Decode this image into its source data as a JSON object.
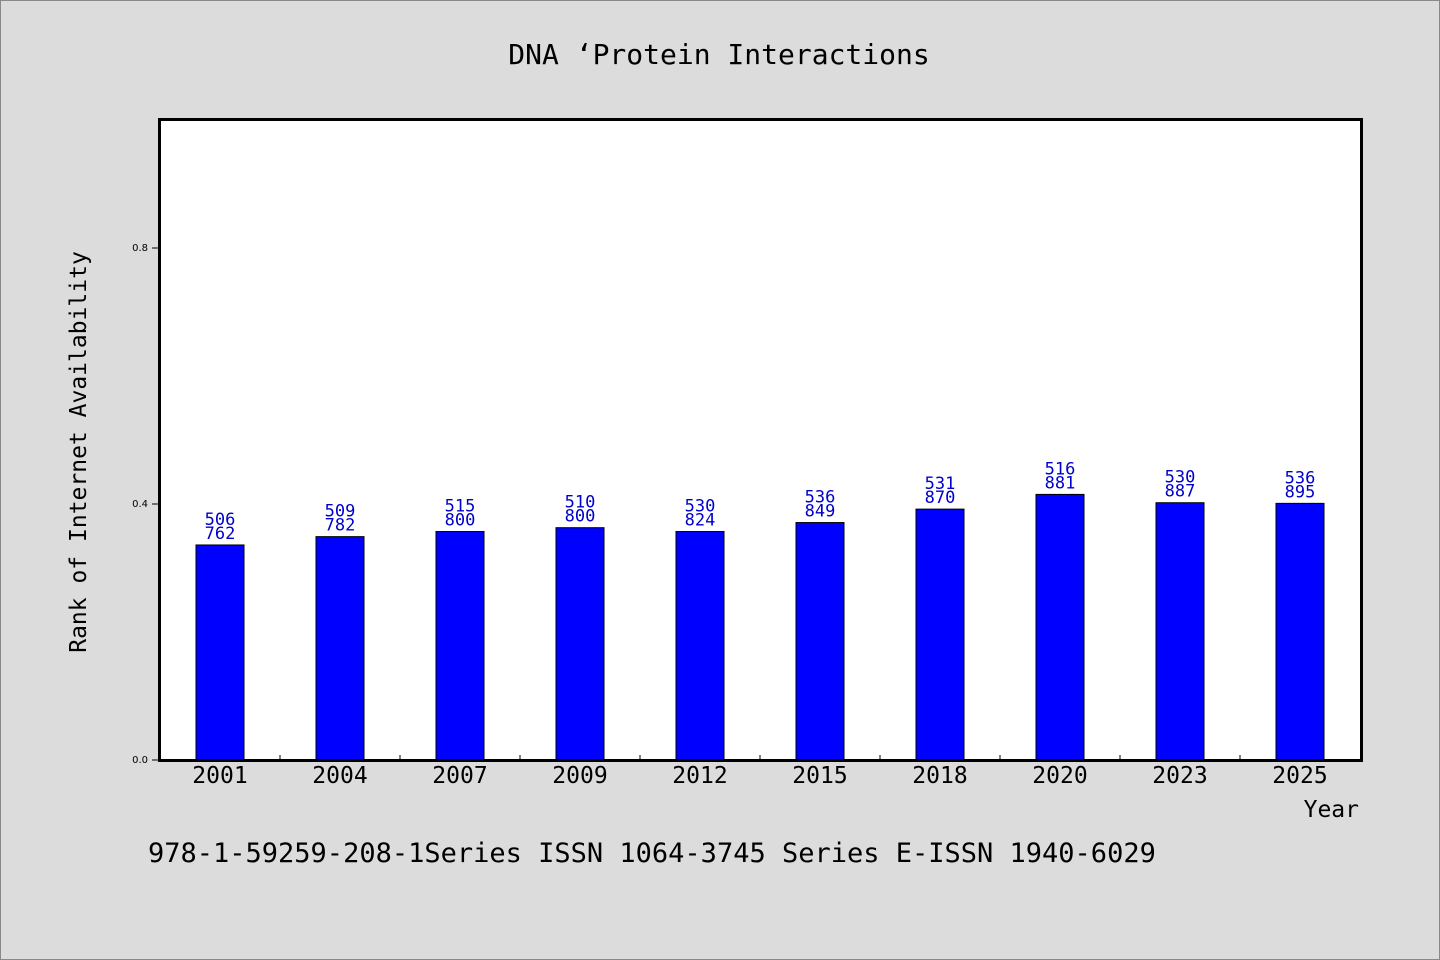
{
  "chart_data": {
    "type": "bar",
    "title": "DNA ‘Protein Interactions",
    "xlabel": "Year",
    "ylabel": "Rank of Internet Availability",
    "categories": [
      "2001",
      "2004",
      "2007",
      "2009",
      "2012",
      "2015",
      "2018",
      "2020",
      "2023",
      "2025"
    ],
    "values": [
      0.336,
      0.349,
      0.357,
      0.363,
      0.357,
      0.371,
      0.392,
      0.415,
      0.402,
      0.401
    ],
    "data_labels": [
      [
        "506",
        "762"
      ],
      [
        "509",
        "782"
      ],
      [
        "515",
        "800"
      ],
      [
        "510",
        "800"
      ],
      [
        "530",
        "824"
      ],
      [
        "536",
        "849"
      ],
      [
        "531",
        "870"
      ],
      [
        "516",
        "881"
      ],
      [
        "530",
        "887"
      ],
      [
        "536",
        "895"
      ]
    ],
    "y_ticks": [
      0.0,
      0.4,
      0.8
    ],
    "y_tick_labels": [
      "0.0",
      "0.4",
      "0.8"
    ],
    "ylim": [
      0,
      1.0
    ],
    "grid": false,
    "bar_color": "#0000ff",
    "label_color": "#0000cc",
    "footnote": "978-1-59259-208-1Series ISSN 1064-3745 Series E-ISSN 1940-6029"
  }
}
